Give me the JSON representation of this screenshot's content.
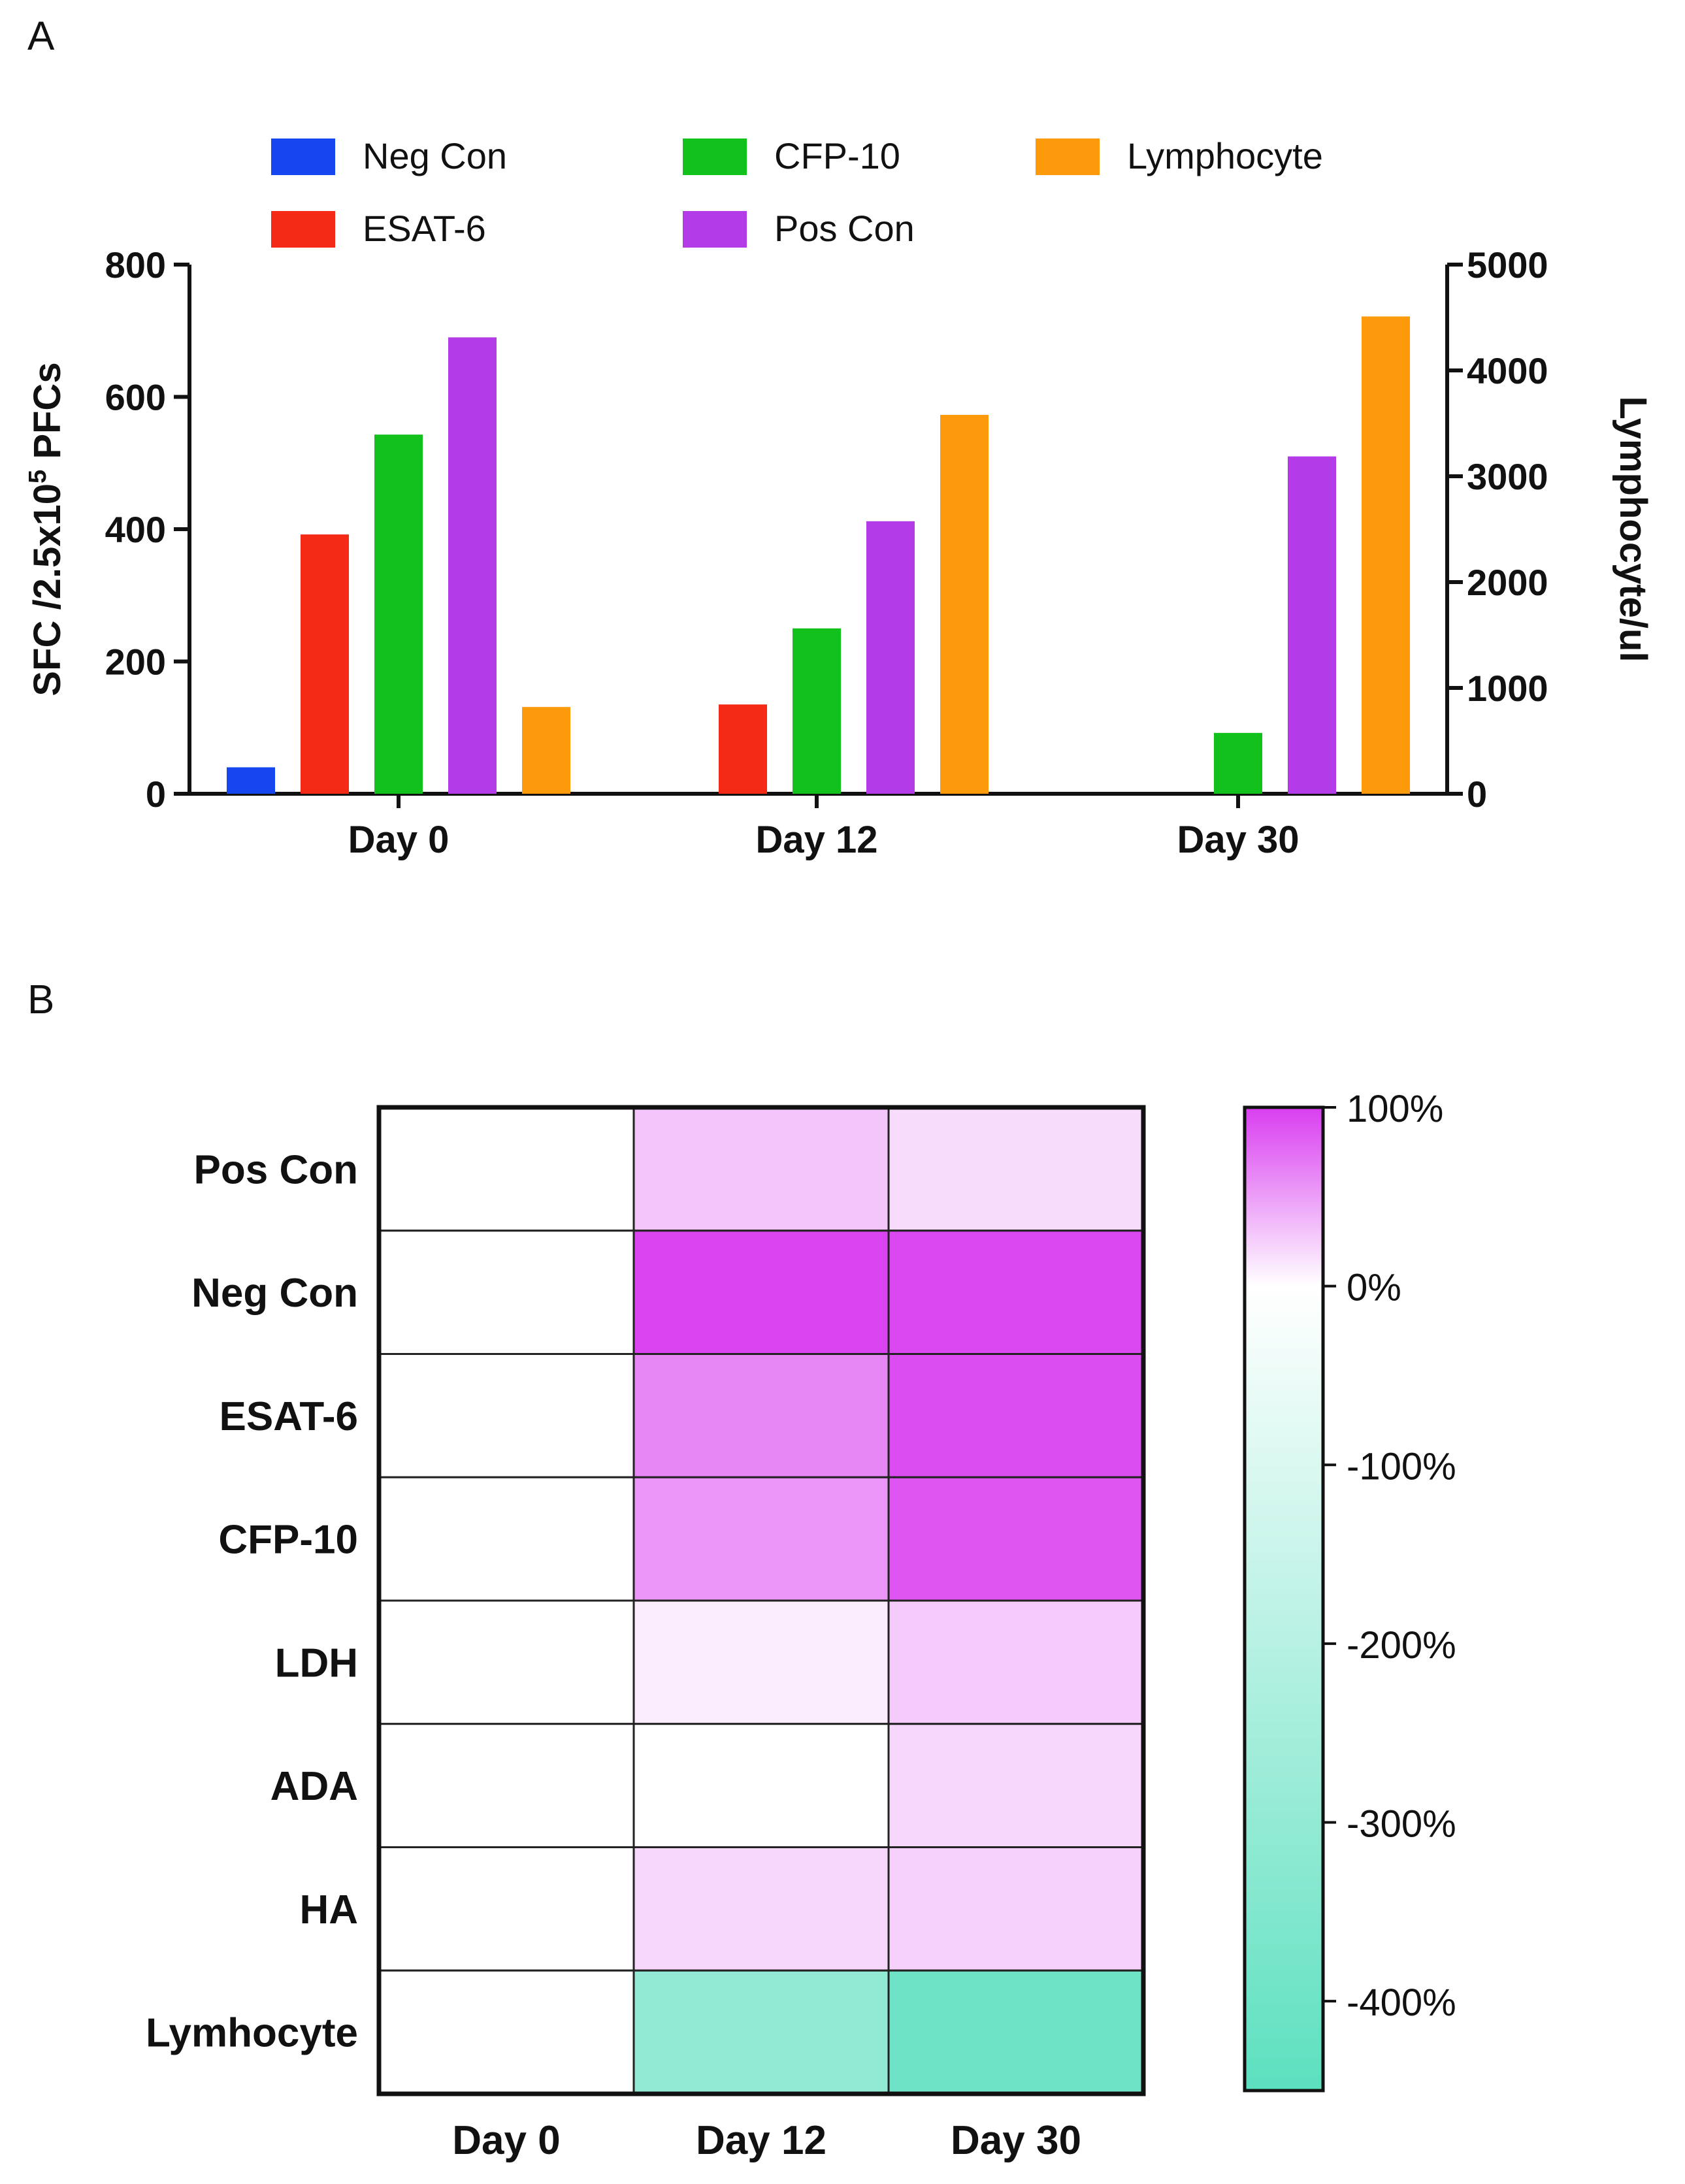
{
  "panels": {
    "a_label": "A",
    "b_label": "B"
  },
  "chart_data": [
    {
      "type": "bar",
      "title": "",
      "categories": [
        "Day 0",
        "Day 12",
        "Day 30"
      ],
      "ylabel": "SFC /2.5x10",
      "ylabel_sup": "5",
      "ylabel_tail": " PFCs",
      "y2label": "Lymphocyte/ul",
      "ylim": [
        0,
        800
      ],
      "y2lim": [
        0,
        5000
      ],
      "yticks": [
        0,
        200,
        400,
        600,
        800
      ],
      "y2ticks": [
        0,
        1000,
        2000,
        3000,
        4000,
        5000
      ],
      "legend_position": "top",
      "series": [
        {
          "name": "Neg Con",
          "color": "#1546f0",
          "axis": "left",
          "values": [
            40,
            0,
            0
          ]
        },
        {
          "name": "ESAT-6",
          "color": "#f42a17",
          "axis": "left",
          "values": [
            392,
            135,
            0
          ]
        },
        {
          "name": "CFP-10",
          "color": "#12c11c",
          "axis": "left",
          "values": [
            543,
            250,
            92
          ]
        },
        {
          "name": "Pos Con",
          "color": "#b43be8",
          "axis": "left",
          "values": [
            690,
            412,
            510
          ]
        },
        {
          "name": "Lymphocyte",
          "color": "#fd9a0c",
          "axis": "right",
          "values": [
            820,
            3580,
            4510
          ]
        }
      ]
    },
    {
      "type": "heatmap",
      "title": "",
      "rows": [
        "Pos Con",
        "Neg Con",
        "ESAT-6",
        "CFP-10",
        "LDH",
        "ADA",
        "HA",
        "Lymhocyte"
      ],
      "columns": [
        "Day 0",
        "Day 12",
        "Day 30"
      ],
      "values": [
        [
          0,
          30,
          18
        ],
        [
          0,
          97,
          95
        ],
        [
          0,
          62,
          92
        ],
        [
          0,
          55,
          88
        ],
        [
          0,
          10,
          27
        ],
        [
          0,
          0,
          20
        ],
        [
          0,
          20,
          24
        ],
        [
          0,
          -300,
          -400
        ]
      ],
      "colorbar": {
        "ticks": [
          100,
          0,
          -100,
          -200,
          -300,
          -400
        ],
        "tick_labels": [
          "100%",
          "0%",
          "-100%",
          "-200%",
          "-300%",
          "-400%"
        ],
        "max_color": "#d93ef0",
        "zero_color": "#ffffff",
        "min_color": "#5ce0bf",
        "max": 100,
        "min": -450
      }
    }
  ]
}
